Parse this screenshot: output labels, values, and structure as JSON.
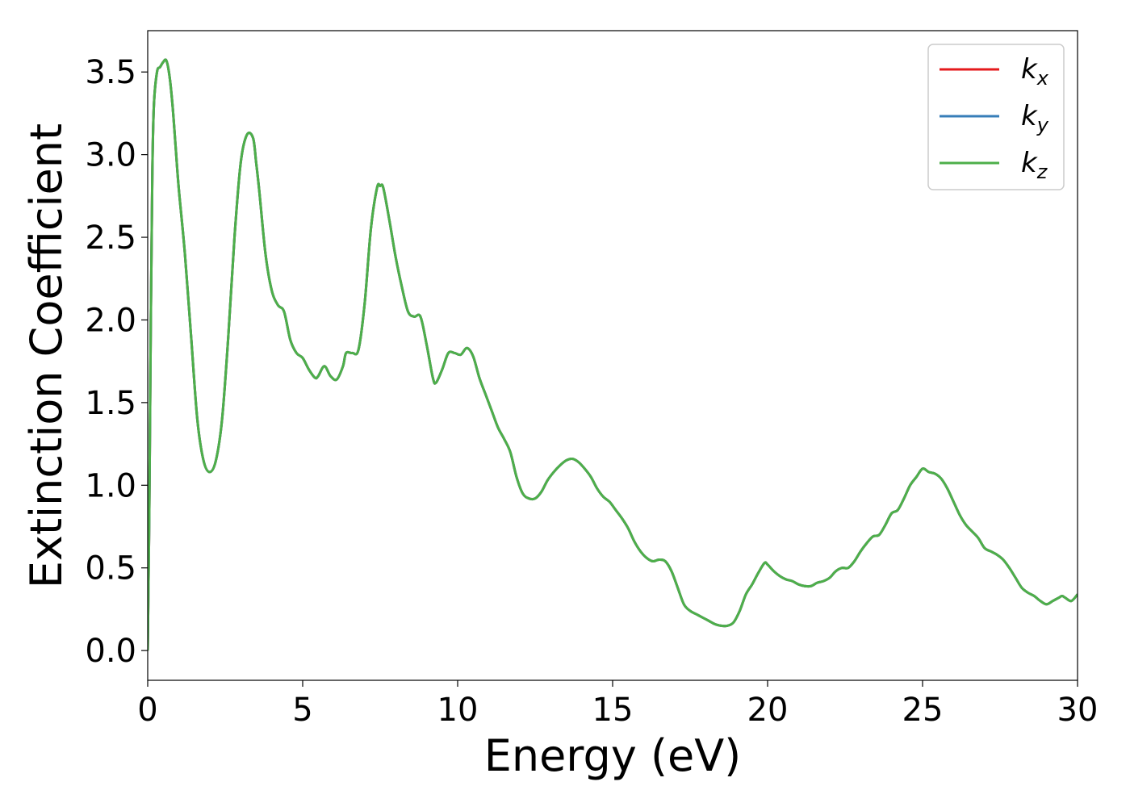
{
  "chart_data": {
    "type": "line",
    "xlabel": "Energy (eV)",
    "ylabel": "Extinction Coefficient",
    "xlim": [
      0,
      30
    ],
    "ylim": [
      -0.18,
      3.75
    ],
    "xticks": [
      "0",
      "5",
      "10",
      "15",
      "20",
      "25",
      "30"
    ],
    "yticks": [
      "0.0",
      "0.5",
      "1.0",
      "1.5",
      "2.0",
      "2.5",
      "3.0",
      "3.5"
    ],
    "grid": false,
    "legend_position": "top-right",
    "series": [
      {
        "name": "k",
        "subscript": "x",
        "color": "#e41a1c"
      },
      {
        "name": "k",
        "subscript": "y",
        "color": "#377eb8"
      },
      {
        "name": "k",
        "subscript": "z",
        "color": "#4daf4a"
      }
    ],
    "x": [
      0.0,
      0.05,
      0.1,
      0.15,
      0.2,
      0.3,
      0.4,
      0.5,
      0.6,
      0.7,
      0.8,
      0.9,
      1.0,
      1.2,
      1.4,
      1.6,
      1.8,
      2.0,
      2.2,
      2.4,
      2.6,
      2.8,
      3.0,
      3.2,
      3.4,
      3.5,
      3.6,
      3.8,
      4.0,
      4.2,
      4.4,
      4.6,
      4.8,
      5.0,
      5.2,
      5.4,
      5.5,
      5.7,
      5.9,
      6.1,
      6.3,
      6.4,
      6.6,
      6.8,
      7.0,
      7.2,
      7.4,
      7.5,
      7.6,
      7.8,
      8.0,
      8.2,
      8.4,
      8.6,
      8.8,
      9.0,
      9.2,
      9.3,
      9.5,
      9.7,
      9.9,
      10.1,
      10.3,
      10.5,
      10.7,
      10.9,
      11.1,
      11.3,
      11.5,
      11.7,
      11.9,
      12.1,
      12.3,
      12.5,
      12.7,
      12.9,
      13.1,
      13.3,
      13.5,
      13.7,
      13.9,
      14.1,
      14.3,
      14.5,
      14.7,
      14.9,
      15.1,
      15.3,
      15.5,
      15.7,
      15.9,
      16.1,
      16.3,
      16.5,
      16.7,
      16.9,
      17.1,
      17.3,
      17.5,
      17.7,
      17.9,
      18.1,
      18.3,
      18.5,
      18.7,
      18.9,
      19.1,
      19.3,
      19.5,
      19.7,
      19.9,
      20.0,
      20.2,
      20.4,
      20.6,
      20.8,
      21.0,
      21.2,
      21.4,
      21.6,
      21.8,
      22.0,
      22.2,
      22.4,
      22.6,
      22.8,
      23.0,
      23.2,
      23.4,
      23.6,
      23.8,
      24.0,
      24.2,
      24.4,
      24.6,
      24.8,
      25.0,
      25.2,
      25.4,
      25.6,
      25.8,
      26.0,
      26.2,
      26.4,
      26.6,
      26.8,
      27.0,
      27.2,
      27.4,
      27.6,
      27.8,
      28.0,
      28.2,
      28.4,
      28.6,
      28.8,
      29.0,
      29.2,
      29.4,
      29.5,
      29.6,
      29.8,
      30.0
    ],
    "y": [
      0.0,
      0.8,
      2.0,
      2.9,
      3.3,
      3.5,
      3.53,
      3.56,
      3.57,
      3.48,
      3.3,
      3.05,
      2.8,
      2.4,
      1.9,
      1.4,
      1.15,
      1.08,
      1.15,
      1.4,
      1.9,
      2.5,
      2.95,
      3.12,
      3.1,
      2.95,
      2.78,
      2.4,
      2.18,
      2.09,
      2.05,
      1.88,
      1.8,
      1.77,
      1.7,
      1.65,
      1.66,
      1.72,
      1.66,
      1.64,
      1.72,
      1.8,
      1.8,
      1.82,
      2.1,
      2.55,
      2.8,
      2.81,
      2.8,
      2.6,
      2.38,
      2.2,
      2.05,
      2.02,
      2.02,
      1.85,
      1.65,
      1.62,
      1.7,
      1.8,
      1.8,
      1.79,
      1.83,
      1.78,
      1.65,
      1.55,
      1.45,
      1.35,
      1.28,
      1.2,
      1.05,
      0.95,
      0.92,
      0.92,
      0.96,
      1.03,
      1.08,
      1.12,
      1.15,
      1.16,
      1.14,
      1.1,
      1.05,
      0.98,
      0.93,
      0.9,
      0.85,
      0.8,
      0.74,
      0.66,
      0.6,
      0.56,
      0.54,
      0.55,
      0.54,
      0.48,
      0.38,
      0.28,
      0.24,
      0.22,
      0.2,
      0.18,
      0.16,
      0.15,
      0.15,
      0.17,
      0.24,
      0.34,
      0.4,
      0.47,
      0.53,
      0.52,
      0.48,
      0.45,
      0.43,
      0.42,
      0.4,
      0.39,
      0.39,
      0.41,
      0.42,
      0.44,
      0.48,
      0.5,
      0.5,
      0.54,
      0.6,
      0.65,
      0.69,
      0.7,
      0.76,
      0.83,
      0.85,
      0.92,
      1.0,
      1.05,
      1.1,
      1.08,
      1.07,
      1.04,
      0.98,
      0.9,
      0.82,
      0.76,
      0.72,
      0.68,
      0.62,
      0.6,
      0.58,
      0.55,
      0.5,
      0.44,
      0.38,
      0.35,
      0.33,
      0.3,
      0.28,
      0.3,
      0.32,
      0.33,
      0.32,
      0.3,
      0.34
    ]
  }
}
